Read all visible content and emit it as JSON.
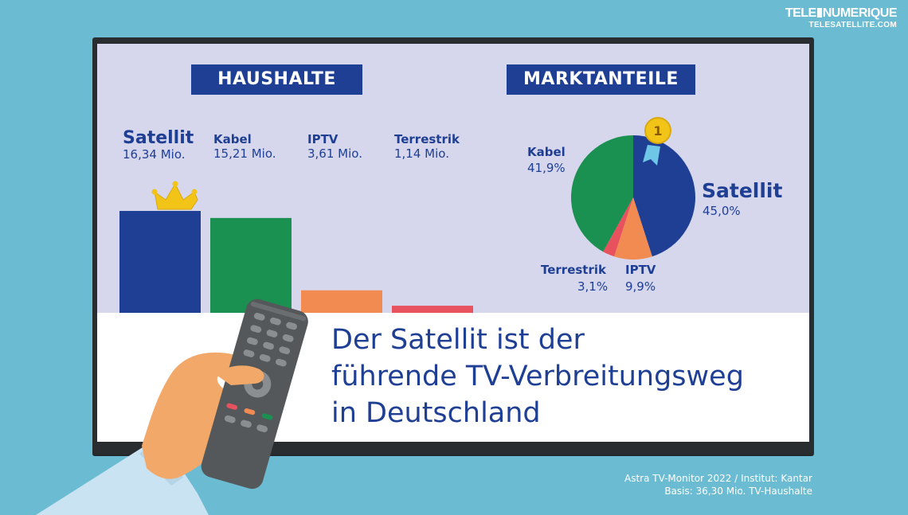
{
  "logo": {
    "line1_a": "TELE",
    "line1_b": "NUMERIQUE",
    "line2": "TELESATELLITE.COM"
  },
  "headline": {
    "line1": "Der Satellit ist der",
    "line2": "führende TV-Verbreitungsweg",
    "line3": "in Deutschland"
  },
  "source": {
    "line1": "Astra TV-Monitor 2022 / Institut: Kantar",
    "line2": "Basis: 36,30 Mio. TV-Haushalte"
  },
  "colors": {
    "satellit": "#1f3f94",
    "kabel": "#1a9150",
    "iptv": "#f28b52",
    "terrestrik": "#e8515e",
    "background": "#6bbcd3",
    "screen": "#d6d7ed"
  },
  "chart_data": [
    {
      "type": "bar",
      "title": "HAUSHALTE",
      "categories": [
        "Satellit",
        "Kabel",
        "IPTV",
        "Terrestrik"
      ],
      "values": [
        16.34,
        15.21,
        3.61,
        1.14
      ],
      "value_labels": [
        "16,34 Mio.",
        "15,21 Mio.",
        "3,61 Mio.",
        "1,14 Mio."
      ],
      "unit": "Mio.",
      "colors": [
        "#1f3f94",
        "#1a9150",
        "#f28b52",
        "#e8515e"
      ],
      "grid": false,
      "legend": "none"
    },
    {
      "type": "pie",
      "title": "MARKTANTEILE",
      "categories": [
        "Satellit",
        "IPTV",
        "Terrestrik",
        "Kabel"
      ],
      "values": [
        45.0,
        9.9,
        3.1,
        41.9
      ],
      "value_labels": [
        "45,0%",
        "9,9%",
        "3,1%",
        "41,9%"
      ],
      "unit": "%",
      "colors": [
        "#1f3f94",
        "#f28b52",
        "#e8515e",
        "#1a9150"
      ],
      "badge": "1"
    }
  ]
}
